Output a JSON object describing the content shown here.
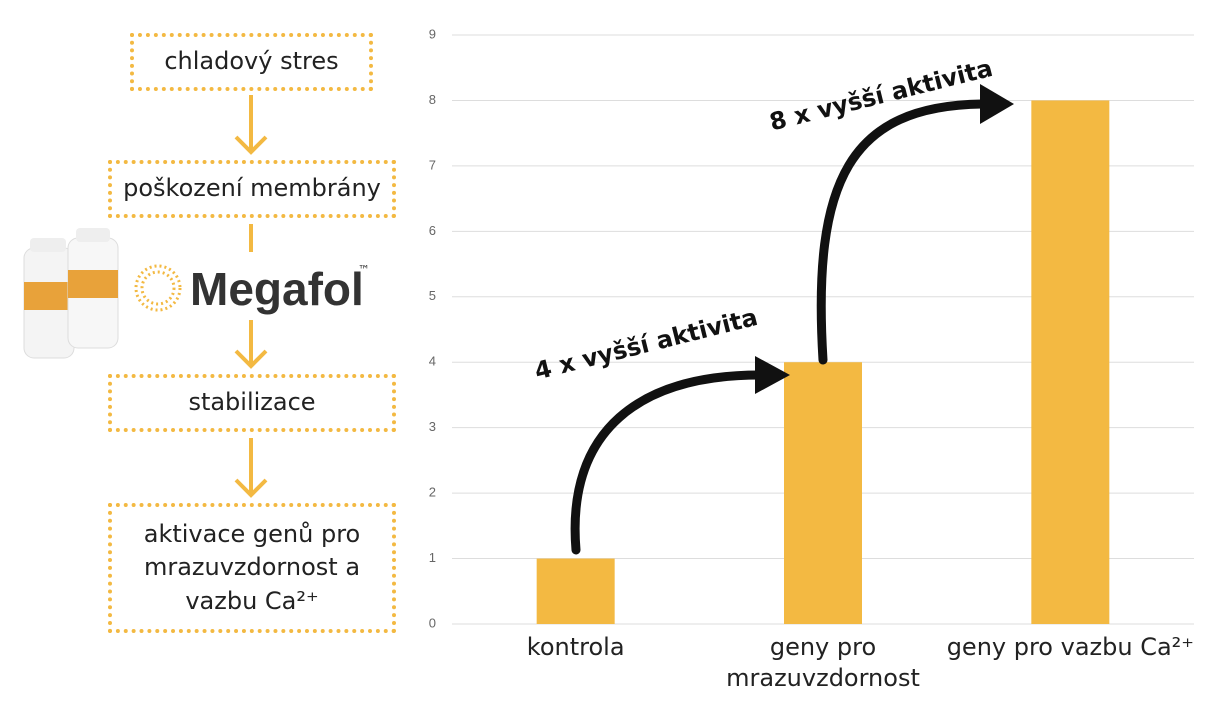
{
  "flowchart": {
    "steps": [
      "chladový stres",
      "poškození membrány",
      "stabilizace",
      "aktivace genů pro mrazuvzdornost a vazbu Ca²⁺"
    ]
  },
  "logo": {
    "name": "Megafol",
    "mark": "™"
  },
  "chart_data": {
    "type": "bar",
    "categories": [
      "kontrola",
      "geny pro mrazuvzdornost",
      "geny pro vazbu Ca²⁺"
    ],
    "values": [
      1,
      4,
      8
    ],
    "color": "#f3b942",
    "ylim": [
      0,
      9
    ],
    "yticks": [
      0,
      1,
      2,
      3,
      4,
      5,
      6,
      7,
      8,
      9
    ],
    "grid": true,
    "annotations": [
      "4 x vyšší aktivita",
      "8 x vyšší aktivita"
    ]
  }
}
